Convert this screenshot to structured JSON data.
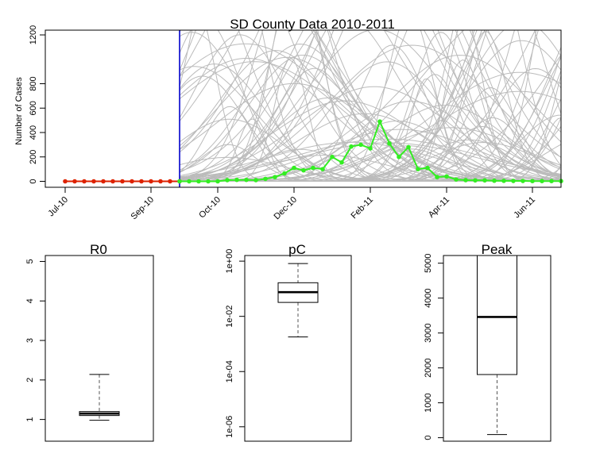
{
  "chart_data": [
    {
      "type": "line",
      "title": "SD County Data 2010-2011",
      "ylabel": "Number of Cases",
      "xlabel": "",
      "x_tick_labels": [
        "Jul-10",
        "Sep-10",
        "Oct-10",
        "Dec-10",
        "Feb-11",
        "Apr-11",
        "Jun-11"
      ],
      "x_ticks_week": [
        0,
        9,
        16,
        24,
        32,
        40,
        49
      ],
      "y_ticks": [
        0,
        200,
        400,
        600,
        800,
        1200
      ],
      "ylim": [
        0,
        1200
      ],
      "forecast_start_week": 12,
      "series": [
        {
          "color": "#dd2200",
          "x_week": [
            0,
            1,
            2,
            3,
            4,
            5,
            6,
            7,
            8,
            9,
            10,
            11,
            12
          ],
          "values": [
            0,
            0,
            0,
            0,
            0,
            0,
            0,
            0,
            0,
            0,
            0,
            0,
            0
          ]
        },
        {
          "color": "#33ee22",
          "x_week": [
            12,
            13,
            14,
            15,
            16,
            17,
            18,
            19,
            20,
            21,
            22,
            23,
            24,
            25,
            26,
            27,
            28,
            29,
            30,
            31,
            32,
            33,
            34,
            35,
            36,
            37,
            38,
            39,
            40,
            41,
            42,
            43,
            44,
            45,
            46,
            47,
            48,
            49,
            50,
            51,
            52
          ],
          "values": [
            0,
            0,
            0,
            0,
            0,
            10,
            12,
            12,
            10,
            20,
            35,
            65,
            110,
            90,
            110,
            100,
            200,
            155,
            285,
            300,
            270,
            490,
            310,
            200,
            280,
            100,
            110,
            35,
            40,
            15,
            10,
            8,
            8,
            5,
            4,
            3,
            3,
            2,
            2,
            2,
            2
          ]
        }
      ],
      "simulation_color": "#bbbbbb",
      "forecast_line_color": "#0000cc"
    },
    {
      "type": "box",
      "title": "R0",
      "y_ticks": [
        1,
        2,
        3,
        4,
        5
      ],
      "ylim": [
        0.45,
        5.15
      ],
      "box": {
        "min": 0.98,
        "q1": 1.1,
        "median": 1.15,
        "q3": 1.2,
        "max": 2.14
      }
    },
    {
      "type": "box",
      "title": "pC",
      "log_scale": true,
      "y_ticks": [
        1e-06,
        0.0001,
        0.01,
        1
      ],
      "y_tick_labels": [
        "1e-06",
        "1e-04",
        "1e-02",
        "1e+00"
      ],
      "ylim": [
        3e-07,
        1.6
      ],
      "box": {
        "min": 0.0018,
        "q1": 0.032,
        "median": 0.075,
        "q3": 0.165,
        "max": 0.82
      }
    },
    {
      "type": "box",
      "title": "Peak",
      "y_ticks": [
        0,
        1000,
        2000,
        3000,
        4000,
        5000
      ],
      "ylim": [
        -100,
        5220
      ],
      "box": {
        "min": 90,
        "q1": 1810,
        "median": 3460,
        "q3": 5220,
        "max": 5220
      }
    }
  ]
}
